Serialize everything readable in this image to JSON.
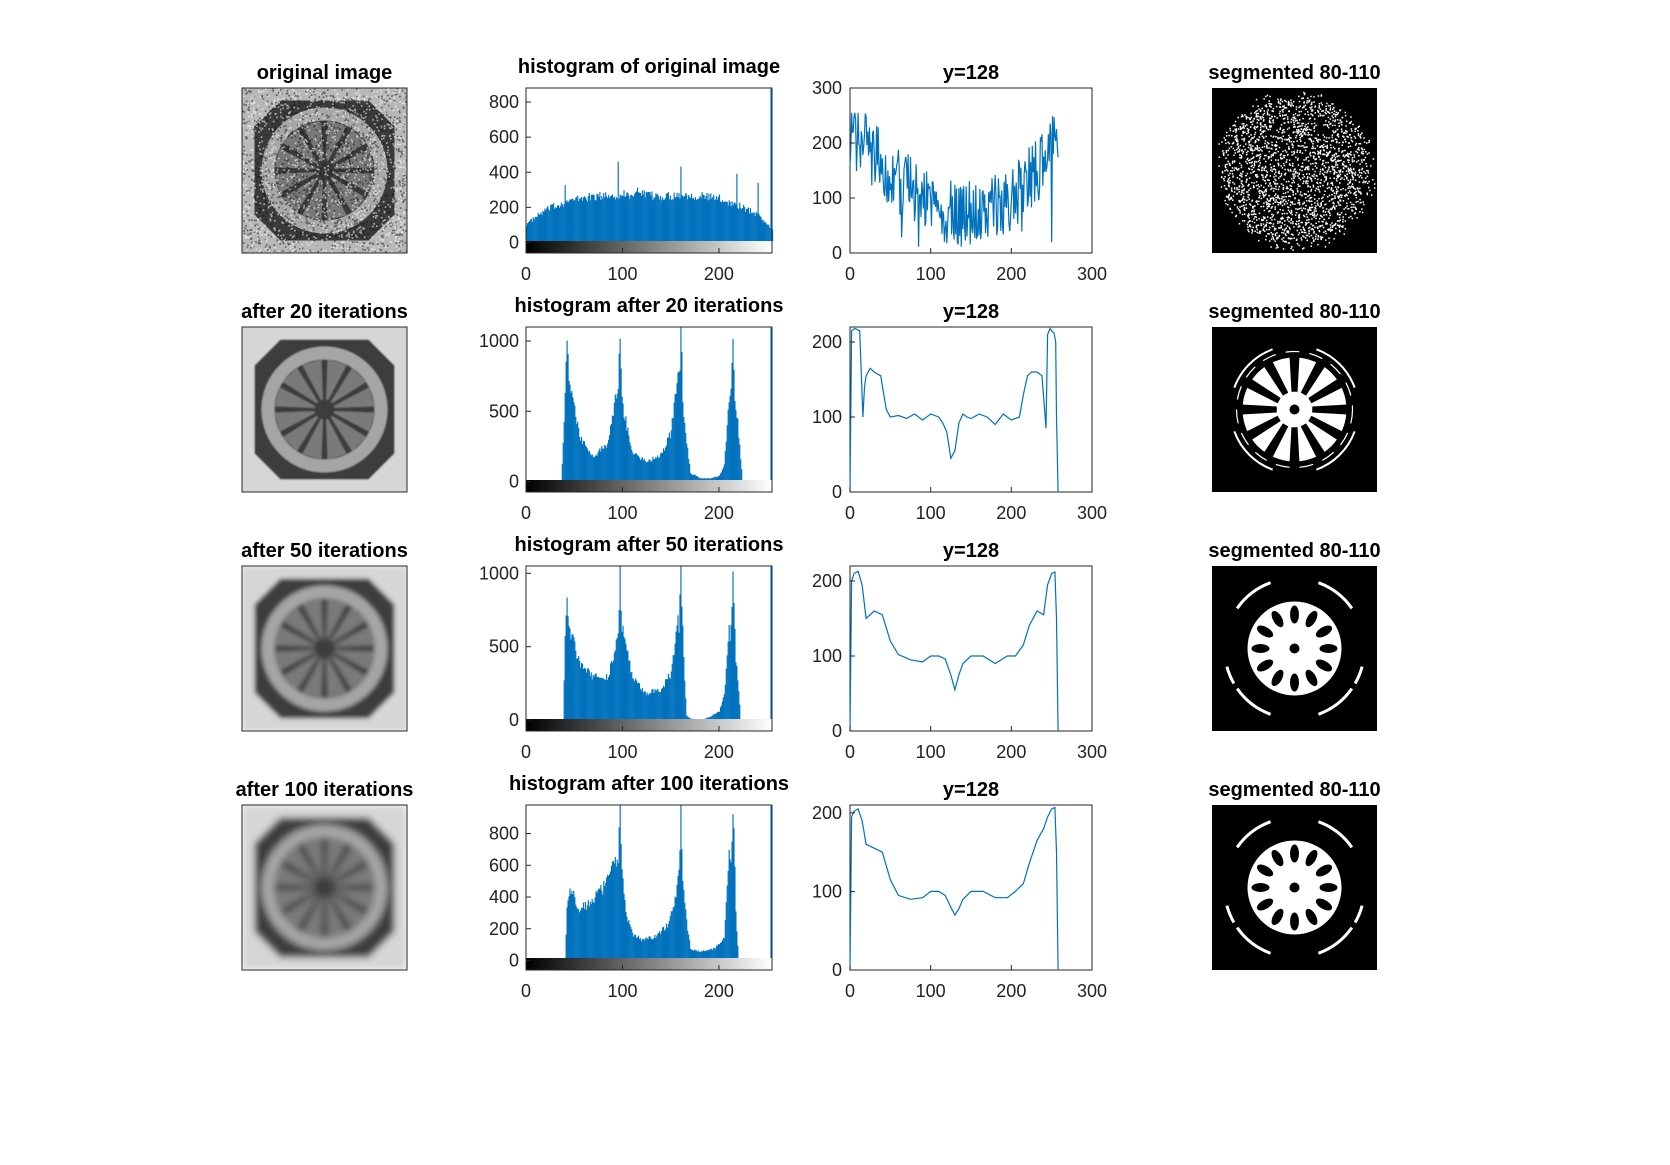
{
  "figure": {
    "rows": [
      {
        "image": {
          "title": "original image",
          "style": "noisy"
        },
        "histogram": {
          "title": "histogram of original image"
        },
        "profile": {
          "title": "y=128"
        },
        "segmented": {
          "title": "segmented 80-110",
          "style": "speckle"
        }
      },
      {
        "image": {
          "title": "after 20 iterations",
          "style": "smooth",
          "blur": 0.7
        },
        "histogram": {
          "title": "histogram after 20 iterations"
        },
        "profile": {
          "title": "y=128"
        },
        "segmented": {
          "title": "segmented 80-110",
          "style": "wheel",
          "spokes": "rect"
        }
      },
      {
        "image": {
          "title": "after 50 iterations",
          "style": "smooth",
          "blur": 2
        },
        "histogram": {
          "title": "histogram after 50 iterations"
        },
        "profile": {
          "title": "y=128"
        },
        "segmented": {
          "title": "segmented 80-110",
          "style": "wheel",
          "spokes": "round"
        }
      },
      {
        "image": {
          "title": "after 100 iterations",
          "style": "smooth",
          "blur": 3.5
        },
        "histogram": {
          "title": "histogram after 100 iterations"
        },
        "profile": {
          "title": "y=128"
        },
        "segmented": {
          "title": "segmented 80-110",
          "style": "wheel",
          "spokes": "round"
        }
      }
    ]
  },
  "chart_data": [
    {
      "type": "bar",
      "title": "histogram of original image",
      "xlim": [
        0,
        255
      ],
      "ylim": [
        -60,
        880
      ],
      "xticks": [
        0,
        100,
        200
      ],
      "yticks": [
        0,
        200,
        400,
        600,
        800
      ],
      "colorbar": "grayscale 0-255",
      "series": [
        {
          "color": "#0072BD",
          "x": [
            0,
            20,
            40,
            60,
            80,
            100,
            120,
            140,
            160,
            180,
            200,
            220,
            240,
            255
          ],
          "values": [
            105,
            185,
            230,
            255,
            265,
            275,
            270,
            260,
            275,
            265,
            250,
            210,
            160,
            70
          ],
          "spikes": [
            [
              40,
              360
            ],
            [
              95,
              420
            ],
            [
              115,
              345
            ],
            [
              160,
              405
            ],
            [
              218,
              375
            ],
            [
              240,
              340
            ]
          ]
        }
      ]
    },
    {
      "type": "bar",
      "title": "histogram after 20 iterations",
      "xlim": [
        0,
        255
      ],
      "ylim": [
        -75,
        1100
      ],
      "xticks": [
        0,
        100,
        200
      ],
      "yticks": [
        0,
        500,
        1000
      ],
      "colorbar": "grayscale 0-255",
      "series": [
        {
          "color": "#0072BD",
          "peaks": [
            [
              42,
              1100
            ],
            [
              97,
              1100
            ],
            [
              160,
              1100
            ],
            [
              214,
              1100
            ]
          ],
          "x": [
            36,
            39,
            45,
            55,
            70,
            85,
            92,
            100,
            110,
            125,
            140,
            150,
            157,
            163,
            170,
            180,
            190,
            200,
            205,
            210,
            218,
            224
          ],
          "values": [
            0,
            420,
            700,
            310,
            180,
            280,
            600,
            520,
            200,
            140,
            190,
            350,
            800,
            450,
            60,
            22,
            22,
            40,
            120,
            600,
            500,
            0
          ]
        }
      ]
    },
    {
      "type": "bar",
      "title": "histogram after 50 iterations",
      "xlim": [
        0,
        255
      ],
      "ylim": [
        -75,
        1050
      ],
      "xticks": [
        0,
        100,
        200
      ],
      "yticks": [
        0,
        500,
        1000
      ],
      "colorbar": "grayscale 0-255",
      "series": [
        {
          "color": "#0072BD",
          "peaks": [
            [
              97,
              1050
            ],
            [
              160,
              1050
            ],
            [
              214,
              1050
            ]
          ],
          "x": [
            38,
            40,
            42,
            45,
            55,
            70,
            85,
            92,
            100,
            110,
            125,
            140,
            150,
            157,
            163,
            166,
            170,
            180,
            190,
            200,
            205,
            210,
            218,
            222
          ],
          "values": [
            0,
            600,
            820,
            620,
            380,
            290,
            300,
            500,
            600,
            280,
            180,
            210,
            320,
            700,
            400,
            30,
            10,
            0,
            20,
            60,
            180,
            600,
            400,
            0
          ]
        }
      ]
    },
    {
      "type": "bar",
      "title": "histogram after 100 iterations",
      "xlim": [
        0,
        255
      ],
      "ylim": [
        -60,
        980
      ],
      "xticks": [
        0,
        100,
        200
      ],
      "yticks": [
        0,
        200,
        400,
        600,
        800
      ],
      "colorbar": "grayscale 0-255",
      "series": [
        {
          "color": "#0072BD",
          "peaks": [
            [
              97,
              980
            ],
            [
              160,
              980
            ],
            [
              214,
              980
            ]
          ],
          "x": [
            40,
            42,
            47,
            55,
            65,
            75,
            85,
            92,
            98,
            103,
            110,
            120,
            135,
            148,
            155,
            160,
            165,
            170,
            180,
            195,
            205,
            210,
            216,
            220
          ],
          "values": [
            0,
            360,
            460,
            310,
            370,
            430,
            500,
            620,
            700,
            300,
            160,
            130,
            150,
            240,
            420,
            700,
            300,
            70,
            55,
            75,
            140,
            650,
            400,
            0
          ]
        }
      ]
    },
    {
      "type": "line",
      "title": "y=128",
      "xlim": [
        0,
        300
      ],
      "ylim": [
        0,
        300
      ],
      "xticks": [
        0,
        100,
        200,
        300
      ],
      "yticks": [
        0,
        100,
        200,
        300
      ],
      "series": [
        {
          "color": "#0072BD",
          "x": [
            0,
            20,
            40,
            60,
            80,
            100,
            120,
            140,
            160,
            180,
            200,
            220,
            240,
            255
          ],
          "values": [
            215,
            195,
            160,
            130,
            115,
            100,
            80,
            70,
            80,
            85,
            100,
            130,
            165,
            215
          ]
        }
      ]
    },
    {
      "type": "line",
      "title": "y=128",
      "xlim": [
        0,
        300
      ],
      "ylim": [
        0,
        220
      ],
      "xticks": [
        0,
        100,
        200,
        300
      ],
      "yticks": [
        0,
        100,
        200
      ],
      "series": [
        {
          "color": "#0072BD",
          "x": [
            0,
            2,
            6,
            12,
            16,
            18,
            20,
            25,
            30,
            38,
            45,
            50,
            60,
            70,
            80,
            90,
            100,
            110,
            115,
            120,
            125,
            130,
            135,
            140,
            145,
            150,
            160,
            170,
            180,
            190,
            200,
            210,
            215,
            220,
            225,
            232,
            238,
            243,
            245,
            248,
            250,
            253,
            255,
            256,
            258
          ],
          "values": [
            0,
            215,
            218,
            215,
            100,
            140,
            155,
            165,
            160,
            155,
            110,
            100,
            102,
            98,
            104,
            96,
            104,
            100,
            92,
            80,
            45,
            55,
            92,
            104,
            100,
            98,
            104,
            100,
            90,
            104,
            96,
            100,
            130,
            155,
            160,
            160,
            155,
            85,
            210,
            218,
            215,
            212,
            200,
            100,
            0
          ]
        }
      ]
    },
    {
      "type": "line",
      "title": "y=128",
      "xlim": [
        0,
        300
      ],
      "ylim": [
        0,
        220
      ],
      "xticks": [
        0,
        100,
        200,
        300
      ],
      "yticks": [
        0,
        100,
        200
      ],
      "series": [
        {
          "color": "#0072BD",
          "x": [
            0,
            2,
            5,
            10,
            15,
            20,
            30,
            40,
            50,
            60,
            75,
            90,
            100,
            110,
            118,
            125,
            130,
            135,
            140,
            150,
            165,
            180,
            195,
            205,
            215,
            222,
            232,
            240,
            245,
            250,
            254,
            256,
            258
          ],
          "values": [
            0,
            200,
            210,
            213,
            195,
            150,
            160,
            155,
            120,
            102,
            95,
            92,
            100,
            100,
            96,
            75,
            55,
            75,
            90,
            100,
            100,
            90,
            100,
            100,
            115,
            140,
            160,
            155,
            195,
            210,
            212,
            150,
            0
          ]
        }
      ]
    },
    {
      "type": "line",
      "title": "y=128",
      "xlim": [
        0,
        300
      ],
      "ylim": [
        0,
        210
      ],
      "xticks": [
        0,
        100,
        200,
        300
      ],
      "yticks": [
        0,
        100,
        200
      ],
      "series": [
        {
          "color": "#0072BD",
          "x": [
            0,
            2,
            5,
            10,
            15,
            20,
            30,
            40,
            50,
            60,
            75,
            90,
            100,
            110,
            118,
            125,
            130,
            135,
            140,
            150,
            165,
            180,
            195,
            205,
            215,
            222,
            232,
            240,
            245,
            250,
            254,
            256,
            258
          ],
          "values": [
            0,
            195,
            202,
            205,
            190,
            160,
            155,
            150,
            115,
            95,
            90,
            92,
            100,
            100,
            95,
            80,
            70,
            78,
            90,
            100,
            100,
            92,
            92,
            100,
            110,
            135,
            165,
            180,
            195,
            205,
            207,
            150,
            0
          ]
        }
      ]
    }
  ],
  "colors": {
    "series": "#0072BD",
    "axes": "#262626",
    "background": "#ffffff"
  }
}
